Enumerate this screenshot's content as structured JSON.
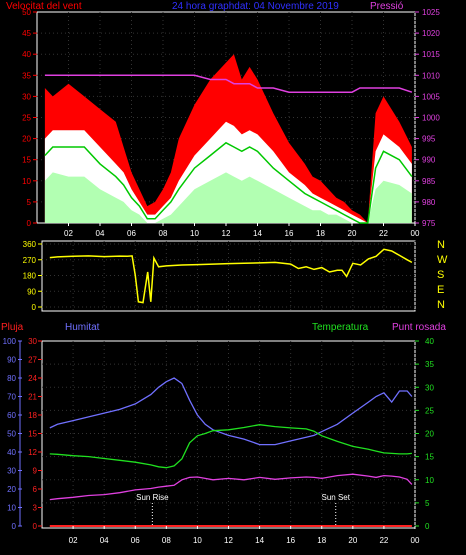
{
  "colors": {
    "wind": "#ff0000",
    "gust_white": "#ffffff",
    "wind_green": "#7fff7f",
    "wind_avg": "#00c800",
    "pressure": "#e040e0",
    "direction": "#ffff00",
    "rain": "#ff2020",
    "humidity": "#7070ff",
    "temperature": "#20e020",
    "dewpoint": "#e040e0",
    "axis": "#ffffff",
    "title": "#3030ff"
  },
  "chart_data": [
    {
      "type": "area",
      "title": "24 hora graphdat: 04 Novembre 2019",
      "left_label": "Velocitat del vent",
      "right_label": "Pressió",
      "x_ticks": [
        "02",
        "04",
        "06",
        "08",
        "10",
        "12",
        "14",
        "16",
        "18",
        "20",
        "22",
        "00"
      ],
      "y_left_ticks": [
        "0",
        "5",
        "10",
        "15",
        "20",
        "25",
        "30",
        "35",
        "40",
        "45",
        "50"
      ],
      "y_left_range": [
        0,
        50
      ],
      "y_right_ticks": [
        "975",
        "980",
        "985",
        "990",
        "995",
        "1000",
        "1005",
        "1010",
        "1015",
        "1020",
        "1025"
      ],
      "y_right_range": [
        975,
        1025
      ],
      "hours": [
        0.5,
        1,
        2,
        3,
        4,
        5,
        5.5,
        6,
        6.5,
        7,
        7.5,
        8,
        8.5,
        9,
        10,
        11,
        12,
        12.5,
        13,
        13.5,
        14,
        15,
        16,
        17,
        17.5,
        18,
        18.5,
        19,
        19.5,
        20,
        20.5,
        21,
        21.5,
        22,
        23,
        23.8
      ],
      "series": [
        {
          "key": "gust",
          "values": [
            32,
            30,
            33,
            30,
            27,
            24,
            18,
            12,
            8,
            4,
            5,
            8,
            12,
            20,
            28,
            34,
            38,
            40,
            34,
            37,
            34,
            26,
            19,
            14,
            11,
            10,
            8,
            6,
            5,
            3,
            2,
            0,
            26,
            30,
            24,
            18
          ]
        },
        {
          "key": "avg_high",
          "values": [
            20,
            22,
            22,
            22,
            18,
            14,
            12,
            8,
            5,
            2,
            2,
            4,
            6,
            10,
            16,
            20,
            24,
            23,
            21,
            22,
            21,
            17,
            12,
            9,
            7,
            6,
            5,
            4,
            3,
            2,
            1,
            0,
            17,
            21,
            18,
            14
          ]
        },
        {
          "key": "avg",
          "values": [
            16,
            18,
            18,
            18,
            14,
            11,
            9,
            6,
            4,
            1,
            1,
            3,
            5,
            8,
            13,
            16,
            19,
            18,
            17,
            18,
            17,
            13,
            10,
            7,
            6,
            5,
            4,
            3,
            2,
            1,
            0,
            0,
            13,
            17,
            15,
            11
          ]
        },
        {
          "key": "low",
          "values": [
            10,
            12,
            11,
            11,
            8,
            6,
            5,
            3,
            2,
            0,
            0,
            1,
            2,
            4,
            8,
            10,
            12,
            11,
            10,
            11,
            10,
            8,
            6,
            4,
            3,
            3,
            2,
            2,
            1,
            0,
            0,
            0,
            8,
            10,
            9,
            7
          ]
        },
        {
          "key": "pressure",
          "values": [
            1010,
            1010,
            1010,
            1010,
            1010,
            1010,
            1010,
            1010,
            1010,
            1010,
            1010,
            1010,
            1010,
            1010,
            1010,
            1009,
            1009,
            1008,
            1008,
            1008,
            1007,
            1007,
            1006,
            1006,
            1006,
            1006,
            1006,
            1006,
            1006,
            1006,
            1007,
            1007,
            1007,
            1007,
            1007,
            1006
          ]
        }
      ]
    },
    {
      "type": "line",
      "y_ticks": [
        "360",
        "270",
        "180",
        "90",
        "0"
      ],
      "y_range": [
        0,
        360
      ],
      "right_labels": [
        "N",
        "W",
        "S",
        "E",
        "N"
      ],
      "hours": [
        0.5,
        1,
        2,
        3,
        4,
        5,
        5.5,
        5.8,
        6,
        6.2,
        6.5,
        6.8,
        7,
        7.2,
        7.5,
        8,
        9,
        10,
        11,
        12,
        13,
        14,
        15,
        16,
        16.5,
        17,
        17.5,
        18,
        18.5,
        19,
        19.3,
        19.6,
        20,
        20.5,
        21,
        21.5,
        22,
        22.5,
        23,
        23.5,
        23.8
      ],
      "values": [
        282,
        286,
        290,
        292,
        288,
        291,
        290,
        292,
        180,
        30,
        25,
        200,
        30,
        280,
        230,
        235,
        240,
        242,
        245,
        248,
        250,
        252,
        255,
        245,
        220,
        230,
        215,
        225,
        200,
        210,
        210,
        175,
        250,
        240,
        275,
        290,
        330,
        320,
        295,
        270,
        255
      ]
    },
    {
      "type": "line",
      "labels": {
        "rain": "Pluja",
        "humidity": "Humitat",
        "temperature": "Temperatura",
        "dewpoint": "Punt rosada",
        "sunrise": "Sun Rise",
        "sunset": "Sun Set"
      },
      "x_ticks": [
        "02",
        "04",
        "06",
        "08",
        "10",
        "12",
        "14",
        "16",
        "18",
        "20",
        "22",
        "00"
      ],
      "y_humidity_ticks": [
        "0",
        "10",
        "20",
        "30",
        "40",
        "50",
        "60",
        "70",
        "80",
        "90",
        "100"
      ],
      "y_rain_ticks": [
        "0",
        "3",
        "6",
        "9",
        "12",
        "15",
        "18",
        "21",
        "24",
        "27",
        "30"
      ],
      "y_temp_ticks": [
        "0",
        "5",
        "10",
        "15",
        "20",
        "25",
        "30",
        "35",
        "40"
      ],
      "sunrise_hour": 7.1,
      "sunset_hour": 18.9,
      "hours": [
        0.5,
        1,
        2,
        3,
        4,
        5,
        6,
        7,
        7.5,
        8,
        8.5,
        9,
        9.5,
        10,
        10.5,
        11,
        12,
        13,
        14,
        15,
        16,
        17,
        17.5,
        18,
        19,
        20,
        21,
        21.5,
        22,
        22.5,
        23,
        23.5,
        23.8
      ],
      "series": [
        {
          "key": "humidity",
          "values": [
            53,
            55,
            57,
            59,
            61,
            63,
            66,
            71,
            75,
            78,
            80,
            77,
            68,
            60,
            55,
            52,
            49,
            47,
            44,
            44,
            46,
            48,
            49,
            51,
            55,
            61,
            67,
            70,
            72,
            67,
            73,
            73,
            70
          ]
        },
        {
          "key": "temperature",
          "values": [
            15.6,
            15.5,
            15.2,
            15.0,
            14.6,
            14.2,
            13.8,
            13.2,
            12.8,
            12.6,
            13.0,
            14.5,
            18.0,
            19.5,
            20.0,
            20.6,
            20.8,
            21.3,
            21.9,
            21.5,
            21.2,
            21.0,
            20.5,
            19.5,
            18.3,
            17.2,
            16.6,
            16.2,
            15.8,
            15.7,
            15.6,
            15.6,
            15.7
          ]
        },
        {
          "key": "dewpoint",
          "values": [
            5.7,
            5.9,
            6.2,
            6.6,
            6.8,
            7.2,
            7.8,
            8.1,
            8.4,
            8.6,
            8.8,
            10.0,
            10.5,
            10.6,
            10.3,
            10.0,
            10.3,
            10.0,
            10.5,
            10.1,
            10.4,
            10.6,
            10.5,
            10.3,
            10.9,
            11.2,
            10.8,
            10.5,
            10.9,
            10.8,
            10.6,
            10.1,
            9.0
          ]
        },
        {
          "key": "rain",
          "values": [
            0,
            0,
            0,
            0,
            0,
            0,
            0,
            0,
            0,
            0,
            0,
            0,
            0,
            0,
            0,
            0,
            0,
            0,
            0,
            0,
            0,
            0,
            0,
            0,
            0,
            0,
            0,
            0,
            0,
            0,
            0,
            0,
            0
          ]
        }
      ]
    }
  ]
}
